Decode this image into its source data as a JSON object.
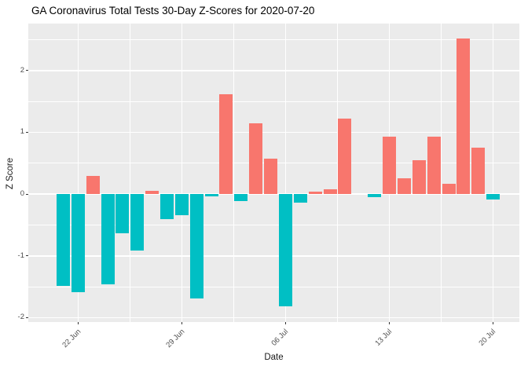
{
  "chart_data": {
    "type": "bar",
    "title": "GA Coronavirus Total Tests 30-Day Z-Scores for 2020-07-20",
    "xlabel": "Date",
    "ylabel": "Z Score",
    "categories": [
      "21 Jun",
      "22 Jun",
      "23 Jun",
      "24 Jun",
      "25 Jun",
      "26 Jun",
      "27 Jun",
      "28 Jun",
      "29 Jun",
      "30 Jun",
      "01 Jul",
      "02 Jul",
      "03 Jul",
      "04 Jul",
      "05 Jul",
      "06 Jul",
      "07 Jul",
      "08 Jul",
      "09 Jul",
      "10 Jul",
      "11 Jul",
      "12 Jul",
      "13 Jul",
      "14 Jul",
      "15 Jul",
      "16 Jul",
      "17 Jul",
      "18 Jul",
      "19 Jul",
      "20 Jul"
    ],
    "values": [
      -1.48,
      -1.59,
      0.3,
      -1.46,
      -0.63,
      -0.91,
      0.05,
      -0.41,
      -0.34,
      -1.69,
      -0.03,
      1.61,
      -0.11,
      1.15,
      0.58,
      -1.81,
      -0.14,
      0.04,
      0.08,
      1.22,
      0.0,
      -0.05,
      0.93,
      0.26,
      0.55,
      0.93,
      0.17,
      2.52,
      0.75,
      -0.09
    ],
    "bar_colors": {
      "positive": "#F8766D",
      "negative": "#00BFC4"
    },
    "x_tick_labels": [
      "22 Jun",
      "29 Jun",
      "06 Jul",
      "13 Jul",
      "20 Jul"
    ],
    "x_tick_indices": [
      1,
      8,
      15,
      22,
      29
    ],
    "x_minor_indices": [
      4.5,
      11.5,
      18.5,
      25.5
    ],
    "y_tick_labels": [
      "-2",
      "-1",
      "0",
      "1",
      "2"
    ],
    "y_ticks": [
      -2,
      -1,
      0,
      1,
      2
    ],
    "y_minor_ticks": [
      -1.5,
      -0.5,
      0.5,
      1.5,
      2.5
    ],
    "ylim": [
      -2.07,
      2.76
    ],
    "panel_bg": "#EBEBEB",
    "grid_color": "#FFFFFF",
    "tick_text_color": "#4D4D4D",
    "legend": "none",
    "grid": "on"
  }
}
